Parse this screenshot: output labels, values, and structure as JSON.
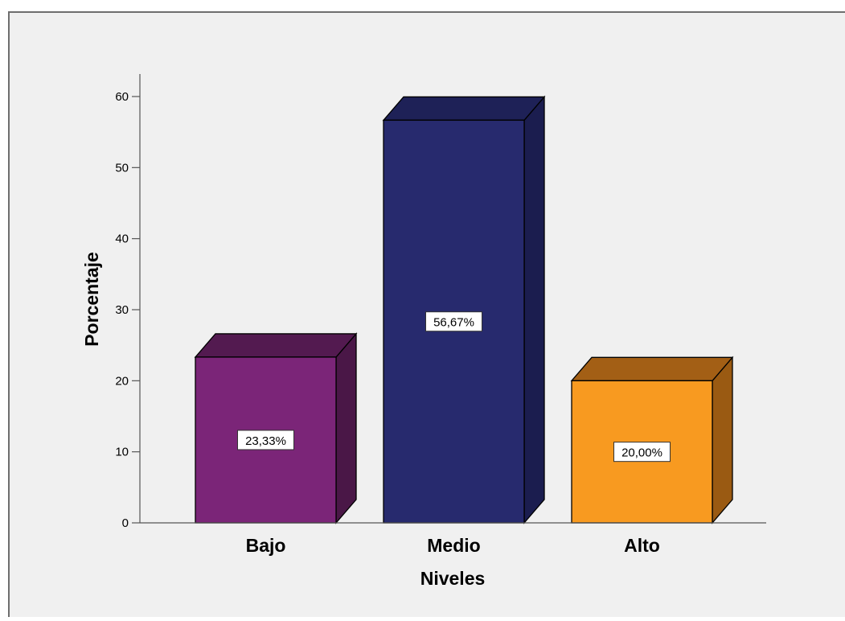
{
  "chart_data": {
    "type": "bar",
    "style": "3d",
    "categories": [
      "Bajo",
      "Medio",
      "Alto"
    ],
    "values": [
      23.33,
      56.67,
      20.0
    ],
    "data_labels": [
      "23,33%",
      "56,67%",
      "20,00%"
    ],
    "xlabel": "Niveles",
    "ylabel": "Porcentaje",
    "ylim": [
      0,
      60
    ],
    "yticks": [
      0,
      10,
      20,
      30,
      40,
      50,
      60
    ],
    "grid": false,
    "legend": "none",
    "colors": {
      "front": [
        "#7b2578",
        "#272a6e",
        "#f89a20"
      ],
      "top": [
        "#531a50",
        "#1e2157",
        "#a35f15"
      ],
      "side": [
        "#4a1747",
        "#1b1d4f",
        "#9a5a12"
      ],
      "background": "#f0f0f0",
      "frame_border": "#6e6e6e"
    }
  }
}
